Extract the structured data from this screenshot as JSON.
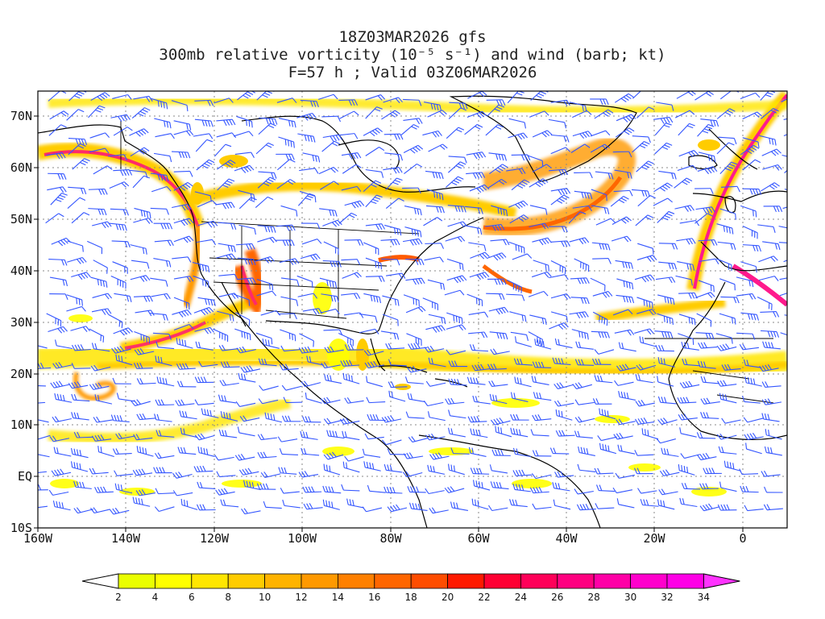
{
  "title": {
    "line1": "18Z03MAR2026 gfs",
    "line2": "300mb relative vorticity (10⁻⁵ s⁻¹) and wind (barb; kt)",
    "line3": "F=57 h ; Valid 03Z06MAR2026"
  },
  "axes": {
    "lon_ticks": [
      "160W",
      "140W",
      "120W",
      "100W",
      "80W",
      "60W",
      "40W",
      "20W",
      "0"
    ],
    "lat_ticks": [
      "70N",
      "60N",
      "50N",
      "40N",
      "30N",
      "20N",
      "10N",
      "EQ",
      "10S"
    ]
  },
  "colorbar": {
    "labels": [
      "2",
      "4",
      "6",
      "8",
      "10",
      "12",
      "14",
      "16",
      "18",
      "20",
      "22",
      "24",
      "26",
      "28",
      "30",
      "32",
      "34"
    ],
    "colors": [
      "#eaff00",
      "#ffff00",
      "#ffe600",
      "#ffcc00",
      "#ffb300",
      "#ff9900",
      "#ff8000",
      "#ff6600",
      "#ff4d00",
      "#ff1a00",
      "#ff0033",
      "#ff0059",
      "#ff0080",
      "#ff00a6",
      "#ff00cc",
      "#ff00e6"
    ],
    "under_color": "#ffffff",
    "over_color": "#ff33ff"
  },
  "colors": {
    "barb": "#3355ff",
    "coast": "#000000",
    "grid": "#888888"
  }
}
